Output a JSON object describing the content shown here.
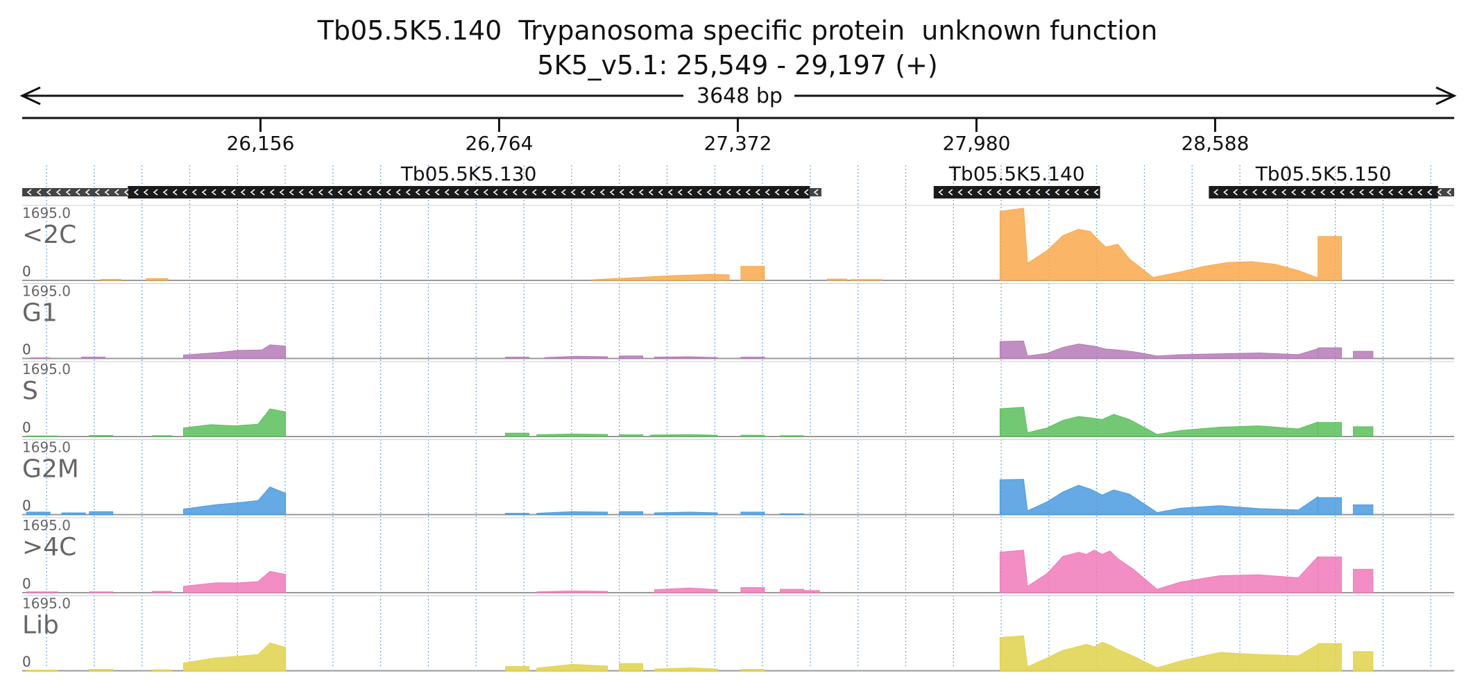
{
  "title": {
    "line1": "Tb05.5K5.140  Trypanosoma specific protein  unknown function",
    "line2": "5K5_v5.1: 25,549 - 29,197 (+)"
  },
  "colors": {
    "<2C": "#f9a94b",
    "G1": "#b57ab9",
    "S": "#5bbf5b",
    "G2M": "#4a9be0",
    ">4C": "#f07ab8",
    "Lib": "#e0d24a",
    "gene": "#1a1a1a",
    "grid": "#6aa6e0"
  },
  "chart_data": {
    "type": "area",
    "span_label": "3648 bp",
    "x_range": [
      25549,
      29197
    ],
    "x_ticks": [
      {
        "value": 26156,
        "label": "26,156"
      },
      {
        "value": 26764,
        "label": "26,764"
      },
      {
        "value": 27372,
        "label": "27,372"
      },
      {
        "value": 27980,
        "label": "27,980"
      },
      {
        "value": 28588,
        "label": "28,588"
      }
    ],
    "genes": [
      {
        "name": "Tb05.5K5.130",
        "start": 25818,
        "end": 27555,
        "utr_start": 25549,
        "utr_end": 27585,
        "strand": "-"
      },
      {
        "name": "Tb05.5K5.140",
        "start": 27871,
        "end": 28295,
        "strand": "-"
      },
      {
        "name": "Tb05.5K5.150",
        "start": 28572,
        "end": 29156,
        "utr_end": 29197,
        "strand": "-"
      }
    ],
    "ylim": [
      0,
      1695.0
    ],
    "y_max_label": "1695.0",
    "y_min_label": "0",
    "tracks": [
      {
        "name": "<2C",
        "segments": [
          {
            "x": [
              25750,
              25800
            ],
            "y": [
              25,
              25
            ]
          },
          {
            "x": [
              25865,
              25920
            ],
            "y": [
              40,
              40
            ]
          },
          {
            "x": [
              27000,
              27100,
              27200,
              27300,
              27350
            ],
            "y": [
              15,
              60,
              110,
              140,
              130
            ]
          },
          {
            "x": [
              27380,
              27440
            ],
            "y": [
              330,
              330
            ]
          },
          {
            "x": [
              27600,
              27650
            ],
            "y": [
              30,
              30
            ]
          },
          {
            "x": [
              27660,
              27740
            ],
            "y": [
              20,
              20
            ]
          },
          {
            "x": [
              28040,
              28100,
              28110,
              28160,
              28200,
              28240,
              28270,
              28290,
              28310,
              28340,
              28370,
              28430,
              28500,
              28560,
              28620,
              28680,
              28740,
              28800,
              28850
            ],
            "y": [
              1620,
              1695,
              400,
              700,
              1050,
              1200,
              1150,
              950,
              780,
              850,
              500,
              70,
              200,
              330,
              420,
              440,
              380,
              230,
              60
            ]
          },
          {
            "x": [
              28850,
              28910
            ],
            "y": [
              1030,
              1030
            ]
          }
        ]
      },
      {
        "name": "G1",
        "segments": [
          {
            "x": [
              25570,
              25620
            ],
            "y": [
              15,
              15
            ]
          },
          {
            "x": [
              25700,
              25760
            ],
            "y": [
              30,
              30
            ]
          },
          {
            "x": [
              25960,
              26050,
              26100,
              26160,
              26180,
              26220
            ],
            "y": [
              80,
              140,
              190,
              200,
              320,
              290
            ]
          },
          {
            "x": [
              26780,
              26840
            ],
            "y": [
              30,
              30
            ]
          },
          {
            "x": [
              26880,
              26960,
              27040
            ],
            "y": [
              20,
              50,
              40
            ]
          },
          {
            "x": [
              27070,
              27130
            ],
            "y": [
              60,
              60
            ]
          },
          {
            "x": [
              27160,
              27250,
              27320
            ],
            "y": [
              30,
              40,
              20
            ]
          },
          {
            "x": [
              27380,
              27440
            ],
            "y": [
              30,
              30
            ]
          },
          {
            "x": [
              28040,
              28100,
              28110,
              28160,
              28200,
              28240,
              28280,
              28310,
              28340,
              28380,
              28440,
              28500,
              28600,
              28700,
              28800,
              28850
            ],
            "y": [
              400,
              410,
              60,
              120,
              260,
              340,
              290,
              220,
              200,
              160,
              60,
              90,
              110,
              130,
              90,
              230
            ]
          },
          {
            "x": [
              28850,
              28910
            ],
            "y": [
              250,
              250
            ]
          },
          {
            "x": [
              28940,
              28990
            ],
            "y": [
              170,
              170
            ]
          }
        ]
      },
      {
        "name": "S",
        "segments": [
          {
            "x": [
              25560,
              25640
            ],
            "y": [
              15,
              15
            ]
          },
          {
            "x": [
              25720,
              25780
            ],
            "y": [
              25,
              25
            ]
          },
          {
            "x": [
              25880,
              25930
            ],
            "y": [
              20,
              20
            ]
          },
          {
            "x": [
              25960,
              26030,
              26090,
              26150,
              26180,
              26220
            ],
            "y": [
              200,
              280,
              250,
              290,
              650,
              580
            ]
          },
          {
            "x": [
              26780,
              26840
            ],
            "y": [
              80,
              80
            ]
          },
          {
            "x": [
              26860,
              26950,
              27040
            ],
            "y": [
              40,
              60,
              50
            ]
          },
          {
            "x": [
              27070,
              27130
            ],
            "y": [
              40,
              40
            ]
          },
          {
            "x": [
              27150,
              27250,
              27320
            ],
            "y": [
              35,
              45,
              30
            ]
          },
          {
            "x": [
              27380,
              27440
            ],
            "y": [
              30,
              30
            ]
          },
          {
            "x": [
              27480,
              27540
            ],
            "y": [
              20,
              20
            ]
          },
          {
            "x": [
              28040,
              28100,
              28110,
              28160,
              28200,
              28240,
              28270,
              28300,
              28330,
              28370,
              28440,
              28500,
              28600,
              28700,
              28800,
              28850
            ],
            "y": [
              650,
              690,
              90,
              200,
              380,
              470,
              440,
              400,
              520,
              400,
              50,
              140,
              220,
              250,
              180,
              340
            ]
          },
          {
            "x": [
              28850,
              28910
            ],
            "y": [
              330,
              330
            ]
          },
          {
            "x": [
              28940,
              28990
            ],
            "y": [
              230,
              230
            ]
          }
        ]
      },
      {
        "name": "G2M",
        "segments": [
          {
            "x": [
              25560,
              25620
            ],
            "y": [
              60,
              60
            ]
          },
          {
            "x": [
              25650,
              25710
            ],
            "y": [
              40,
              40
            ]
          },
          {
            "x": [
              25720,
              25780
            ],
            "y": [
              70,
              70
            ]
          },
          {
            "x": [
              25960,
              26040,
              26100,
              26150,
              26180,
              26220
            ],
            "y": [
              130,
              230,
              280,
              330,
              650,
              500
            ]
          },
          {
            "x": [
              26780,
              26840
            ],
            "y": [
              30,
              30
            ]
          },
          {
            "x": [
              26860,
              26950,
              27040
            ],
            "y": [
              30,
              70,
              60
            ]
          },
          {
            "x": [
              27070,
              27130
            ],
            "y": [
              70,
              70
            ]
          },
          {
            "x": [
              27160,
              27250,
              27320
            ],
            "y": [
              40,
              60,
              40
            ]
          },
          {
            "x": [
              27380,
              27440
            ],
            "y": [
              60,
              60
            ]
          },
          {
            "x": [
              27480,
              27540
            ],
            "y": [
              20,
              20
            ]
          },
          {
            "x": [
              28040,
              28100,
              28110,
              28160,
              28200,
              28240,
              28270,
              28300,
              28330,
              28370,
              28440,
              28500,
              28600,
              28700,
              28800,
              28850
            ],
            "y": [
              820,
              830,
              90,
              300,
              530,
              690,
              600,
              460,
              580,
              480,
              50,
              150,
              210,
              140,
              110,
              420
            ]
          },
          {
            "x": [
              28850,
              28910
            ],
            "y": [
              400,
              400
            ]
          },
          {
            "x": [
              28940,
              28990
            ],
            "y": [
              230,
              230
            ]
          }
        ]
      },
      {
        "name": ">4C",
        "segments": [
          {
            "x": [
              25560,
              25640
            ],
            "y": [
              20,
              20
            ]
          },
          {
            "x": [
              25720,
              25780
            ],
            "y": [
              20,
              20
            ]
          },
          {
            "x": [
              25880,
              25930
            ],
            "y": [
              30,
              30
            ]
          },
          {
            "x": [
              25960,
              26040,
              26100,
              26150,
              26180,
              26220
            ],
            "y": [
              150,
              230,
              230,
              260,
              500,
              430
            ]
          },
          {
            "x": [
              26860,
              26950,
              27040
            ],
            "y": [
              20,
              40,
              30
            ]
          },
          {
            "x": [
              27160,
              27250,
              27320
            ],
            "y": [
              70,
              110,
              70
            ]
          },
          {
            "x": [
              27380,
              27440
            ],
            "y": [
              120,
              120
            ]
          },
          {
            "x": [
              27480,
              27540
            ],
            "y": [
              80,
              80
            ]
          },
          {
            "x": [
              27540,
              27580
            ],
            "y": [
              50,
              50
            ]
          },
          {
            "x": [
              28040,
              28100,
              28110,
              28160,
              28200,
              28240,
              28260,
              28280,
              28300,
              28320,
              28340,
              28380,
              28440,
              28500,
              28600,
              28700,
              28800,
              28850
            ],
            "y": [
              950,
              1000,
              150,
              450,
              850,
              950,
              900,
              1000,
              900,
              980,
              800,
              550,
              80,
              250,
              400,
              420,
              350,
              850
            ]
          },
          {
            "x": [
              28850,
              28910
            ],
            "y": [
              840,
              840
            ]
          },
          {
            "x": [
              28940,
              28990
            ],
            "y": [
              550,
              550
            ]
          }
        ]
      },
      {
        "name": "Lib",
        "segments": [
          {
            "x": [
              25560,
              25640
            ],
            "y": [
              15,
              15
            ]
          },
          {
            "x": [
              25720,
              25780
            ],
            "y": [
              30,
              30
            ]
          },
          {
            "x": [
              25880,
              25930
            ],
            "y": [
              20,
              20
            ]
          },
          {
            "x": [
              25960,
              26040,
              26100,
              26150,
              26180,
              26220
            ],
            "y": [
              180,
              300,
              340,
              380,
              650,
              550
            ]
          },
          {
            "x": [
              26780,
              26840
            ],
            "y": [
              100,
              100
            ]
          },
          {
            "x": [
              26860,
              26950,
              27040
            ],
            "y": [
              60,
              150,
              110
            ]
          },
          {
            "x": [
              27070,
              27130
            ],
            "y": [
              170,
              170
            ]
          },
          {
            "x": [
              27160,
              27250,
              27320
            ],
            "y": [
              40,
              70,
              40
            ]
          },
          {
            "x": [
              27380,
              27440
            ],
            "y": [
              30,
              30
            ]
          },
          {
            "x": [
              28040,
              28100,
              28110,
              28160,
              28200,
              28240,
              28260,
              28280,
              28300,
              28320,
              28340,
              28380,
              28440,
              28500,
              28600,
              28700,
              28800,
              28850
            ],
            "y": [
              780,
              820,
              90,
              300,
              480,
              570,
              620,
              560,
              670,
              600,
              500,
              340,
              70,
              230,
              430,
              380,
              350,
              620
            ]
          },
          {
            "x": [
              28850,
              28910
            ],
            "y": [
              640,
              640
            ]
          },
          {
            "x": [
              28940,
              28990
            ],
            "y": [
              450,
              450
            ]
          }
        ]
      }
    ]
  }
}
